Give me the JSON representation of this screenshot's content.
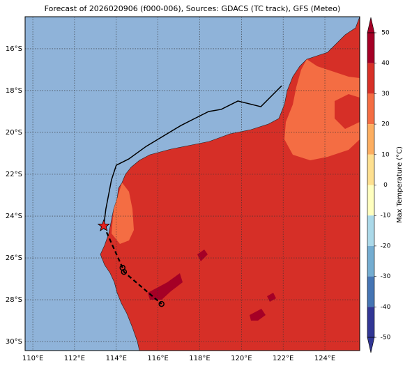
{
  "map": {
    "title": "Forecast of 2026020906 (f000-006), Sources: GDACS (TC track), GFS (Meteo)",
    "lonlim": [
      109.63,
      125.67
    ],
    "latlim": [
      -30.43,
      -14.47
    ],
    "lon_ticks": [
      {
        "value": 110,
        "label": "110°E"
      },
      {
        "value": 112,
        "label": "112°E"
      },
      {
        "value": 114,
        "label": "114°E"
      },
      {
        "value": 116,
        "label": "116°E"
      },
      {
        "value": 118,
        "label": "118°E"
      },
      {
        "value": 120,
        "label": "120°E"
      },
      {
        "value": 122,
        "label": "122°E"
      },
      {
        "value": 124,
        "label": "124°E"
      }
    ],
    "lat_ticks": [
      {
        "value": -16,
        "label": "16°S"
      },
      {
        "value": -18,
        "label": "18°S"
      },
      {
        "value": -20,
        "label": "20°S"
      },
      {
        "value": -22,
        "label": "22°S"
      },
      {
        "value": -24,
        "label": "24°S"
      },
      {
        "value": -26,
        "label": "26°S"
      },
      {
        "value": -28,
        "label": "28°S"
      },
      {
        "value": -30,
        "label": "30°S"
      }
    ],
    "grid": true,
    "colorbar": {
      "label": "Max Temperature (°C)",
      "ticks": [
        50,
        40,
        30,
        20,
        10,
        0,
        -10,
        -20,
        -30,
        -40,
        -50
      ],
      "colors": [
        "#a50026",
        "#d73027",
        "#f46d43",
        "#fdae61",
        "#fee090",
        "#ffffbf",
        "#abd9e9",
        "#74add1",
        "#4575b4",
        "#313695"
      ]
    },
    "track": {
      "past_lon": [
        121.93,
        120.93,
        119.83,
        119.03,
        118.43,
        117.77,
        117.1,
        115.43,
        114.6,
        114.0,
        113.77,
        113.5,
        113.4
      ],
      "past_lat": [
        -17.77,
        -18.77,
        -18.5,
        -18.9,
        -19.0,
        -19.33,
        -19.67,
        -20.67,
        -21.27,
        -21.57,
        -22.27,
        -23.67,
        -24.47
      ],
      "forecast_lon": [
        113.4,
        114.3,
        114.37,
        116.17
      ],
      "forecast_lat": [
        -24.47,
        -26.47,
        -26.67,
        -28.2
      ]
    }
  }
}
